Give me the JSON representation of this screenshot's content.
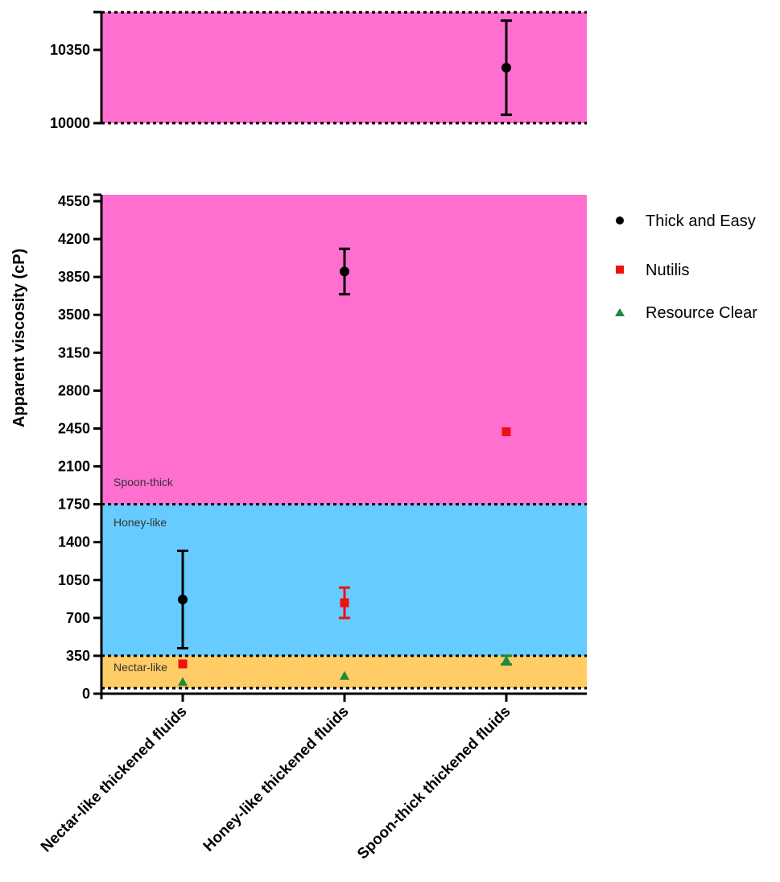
{
  "chart_data": {
    "type": "scatter",
    "ylabel": "Apparent viscosity (cP)",
    "categories": [
      "Nectar-like thickened fluids",
      "Honey-like thickened fluids",
      "Spoon-thick thickened fluids"
    ],
    "colors": {
      "spoon_band": "#ff6fd0",
      "honey_band": "#66ccff",
      "nectar_band": "#ffcc66",
      "thick_and_easy": "#000000",
      "nutilis": "#ee1111",
      "resource_clear": "#1e8a3c"
    },
    "upper_panel": {
      "ylim": [
        10000,
        10530
      ],
      "yticks": [
        10000,
        10350
      ],
      "tick_labels": [
        "10000",
        "10350"
      ]
    },
    "lower_panel": {
      "ylim": [
        0,
        4600
      ],
      "yticks": [
        0,
        350,
        700,
        1050,
        1400,
        1750,
        2100,
        2450,
        2800,
        3150,
        3500,
        3850,
        4200,
        4550
      ],
      "tick_labels": [
        "0",
        "350",
        "700",
        "1050",
        "1400",
        "1750",
        "2100",
        "2450",
        "2800",
        "3150",
        "3500",
        "3850",
        "4200",
        "4550"
      ]
    },
    "bands": [
      {
        "label": "Nectar-like",
        "from": 51,
        "to": 350,
        "color_key": "nectar_band"
      },
      {
        "label": "Honey-like",
        "from": 350,
        "to": 1750,
        "color_key": "honey_band"
      },
      {
        "label": "Spoon-thick",
        "from": 1750,
        "to": 10530,
        "color_key": "spoon_band"
      }
    ],
    "boundaries": [
      51,
      350,
      1750,
      10000,
      10530
    ],
    "series": [
      {
        "name": "Thick and Easy",
        "marker": "circle",
        "color_key": "thick_and_easy",
        "values": [
          870,
          3900,
          10265
        ],
        "errors": [
          450,
          210,
          225
        ]
      },
      {
        "name": "Nutilis",
        "marker": "square",
        "color_key": "nutilis",
        "values": [
          275,
          840,
          2420
        ],
        "errors": [
          0,
          140,
          0
        ]
      },
      {
        "name": "Resource Clear",
        "marker": "triangle",
        "color_key": "resource_clear",
        "values": [
          110,
          165,
          310
        ],
        "errors": [
          0,
          0,
          40
        ]
      }
    ],
    "legend_position": "right"
  }
}
